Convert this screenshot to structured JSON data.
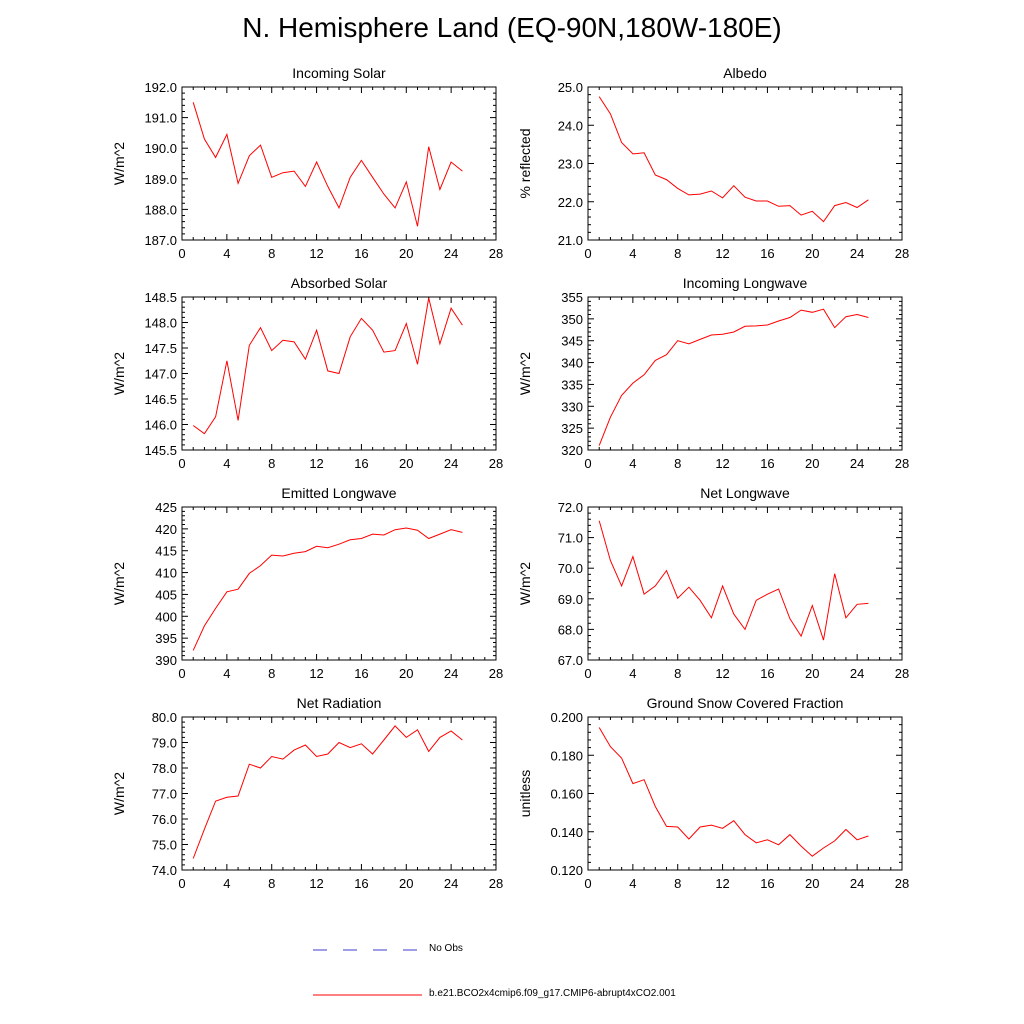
{
  "figure": {
    "title": "N. Hemisphere Land (EQ-90N,180W-180E)"
  },
  "legend": {
    "obs_label": "No Obs",
    "obs_color": "#3b3bd0",
    "model_label": "b.e21.BCO2x4cmip6.f09_g17.CMIP6-abrupt4xCO2.001",
    "model_color": "#ff0000"
  },
  "chart_data": [
    {
      "type": "line",
      "title": "Incoming Solar",
      "xlabel": "",
      "ylabel": "W/m^2",
      "xlim": [
        0,
        28
      ],
      "ylim": [
        187.0,
        192.0
      ],
      "xticks": [
        "0",
        "4",
        "8",
        "12",
        "16",
        "20",
        "24",
        "28"
      ],
      "yticks": [
        "187.0",
        "188.0",
        "189.0",
        "190.0",
        "191.0",
        "192.0"
      ],
      "x": [
        1,
        2,
        3,
        4,
        5,
        6,
        7,
        8,
        9,
        10,
        11,
        12,
        13,
        14,
        15,
        16,
        17,
        18,
        19,
        20,
        21,
        22,
        23,
        24,
        25
      ],
      "series": [
        {
          "name": "b.e21.BCO2x4cmip6.f09_g17.CMIP6-abrupt4xCO2.001",
          "values": [
            191.5,
            190.3,
            189.7,
            190.45,
            188.85,
            189.75,
            190.1,
            189.05,
            189.2,
            189.25,
            188.75,
            189.55,
            188.75,
            188.05,
            189.05,
            189.6,
            189.05,
            188.5,
            188.05,
            188.9,
            187.45,
            190.05,
            188.65,
            189.55,
            189.25
          ]
        }
      ]
    },
    {
      "type": "line",
      "title": "Albedo",
      "xlabel": "",
      "ylabel": "% reflected",
      "xlim": [
        0,
        28
      ],
      "ylim": [
        21.0,
        25.0
      ],
      "xticks": [
        "0",
        "4",
        "8",
        "12",
        "16",
        "20",
        "24",
        "28"
      ],
      "yticks": [
        "21.0",
        "22.0",
        "23.0",
        "24.0",
        "25.0"
      ],
      "x": [
        1,
        2,
        3,
        4,
        5,
        6,
        7,
        8,
        9,
        10,
        11,
        12,
        13,
        14,
        15,
        16,
        17,
        18,
        19,
        20,
        21,
        22,
        23,
        24,
        25
      ],
      "series": [
        {
          "name": "b.e21.BCO2x4cmip6.f09_g17.CMIP6-abrupt4xCO2.001",
          "values": [
            24.75,
            24.3,
            23.55,
            23.25,
            23.28,
            22.7,
            22.58,
            22.35,
            22.18,
            22.2,
            22.28,
            22.1,
            22.42,
            22.12,
            22.02,
            22.02,
            21.88,
            21.9,
            21.65,
            21.75,
            21.48,
            21.9,
            21.98,
            21.85,
            22.05
          ]
        }
      ]
    },
    {
      "type": "line",
      "title": "Absorbed Solar",
      "xlabel": "",
      "ylabel": "W/m^2",
      "xlim": [
        0,
        28
      ],
      "ylim": [
        145.5,
        148.5
      ],
      "xticks": [
        "0",
        "4",
        "8",
        "12",
        "16",
        "20",
        "24",
        "28"
      ],
      "yticks": [
        "145.5",
        "146.0",
        "146.5",
        "147.0",
        "147.5",
        "148.0",
        "148.5"
      ],
      "x": [
        1,
        2,
        3,
        4,
        5,
        6,
        7,
        8,
        9,
        10,
        11,
        12,
        13,
        14,
        15,
        16,
        17,
        18,
        19,
        20,
        21,
        22,
        23,
        24,
        25
      ],
      "series": [
        {
          "name": "b.e21.BCO2x4cmip6.f09_g17.CMIP6-abrupt4xCO2.001",
          "values": [
            145.98,
            145.82,
            146.15,
            147.25,
            146.08,
            147.55,
            147.9,
            147.45,
            147.65,
            147.62,
            147.28,
            147.85,
            147.05,
            147.0,
            147.72,
            148.08,
            147.85,
            147.42,
            147.45,
            147.98,
            147.18,
            148.48,
            147.58,
            148.28,
            147.95
          ]
        }
      ]
    },
    {
      "type": "line",
      "title": "Incoming Longwave",
      "xlabel": "",
      "ylabel": "W/m^2",
      "xlim": [
        0,
        28
      ],
      "ylim": [
        320,
        355
      ],
      "xticks": [
        "0",
        "4",
        "8",
        "12",
        "16",
        "20",
        "24",
        "28"
      ],
      "yticks": [
        "320",
        "325",
        "330",
        "335",
        "340",
        "345",
        "350",
        "355"
      ],
      "x": [
        1,
        2,
        3,
        4,
        5,
        6,
        7,
        8,
        9,
        10,
        11,
        12,
        13,
        14,
        15,
        16,
        17,
        18,
        19,
        20,
        21,
        22,
        23,
        24,
        25
      ],
      "series": [
        {
          "name": "b.e21.BCO2x4cmip6.f09_g17.CMIP6-abrupt4xCO2.001",
          "values": [
            321.0,
            327.5,
            332.5,
            335.3,
            337.2,
            340.5,
            341.8,
            345.0,
            344.3,
            345.3,
            346.3,
            346.5,
            347.0,
            348.3,
            348.4,
            348.6,
            349.5,
            350.3,
            352.0,
            351.5,
            352.2,
            348.0,
            350.5,
            351.0,
            350.3
          ]
        }
      ]
    },
    {
      "type": "line",
      "title": "Emitted Longwave",
      "xlabel": "",
      "ylabel": "W/m^2",
      "xlim": [
        0,
        28
      ],
      "ylim": [
        390,
        425
      ],
      "xticks": [
        "0",
        "4",
        "8",
        "12",
        "16",
        "20",
        "24",
        "28"
      ],
      "yticks": [
        "390",
        "395",
        "400",
        "405",
        "410",
        "415",
        "420",
        "425"
      ],
      "x": [
        1,
        2,
        3,
        4,
        5,
        6,
        7,
        8,
        9,
        10,
        11,
        12,
        13,
        14,
        15,
        16,
        17,
        18,
        19,
        20,
        21,
        22,
        23,
        24,
        25
      ],
      "series": [
        {
          "name": "b.e21.BCO2x4cmip6.f09_g17.CMIP6-abrupt4xCO2.001",
          "values": [
            392.2,
            397.8,
            401.8,
            405.6,
            406.2,
            409.8,
            411.6,
            414.0,
            413.8,
            414.4,
            414.8,
            416.0,
            415.7,
            416.5,
            417.5,
            417.8,
            418.8,
            418.6,
            419.8,
            420.2,
            419.7,
            417.8,
            418.8,
            419.8,
            419.2
          ]
        }
      ]
    },
    {
      "type": "line",
      "title": "Net Longwave",
      "xlabel": "",
      "ylabel": "W/m^2",
      "xlim": [
        0,
        28
      ],
      "ylim": [
        67.0,
        72.0
      ],
      "xticks": [
        "0",
        "4",
        "8",
        "12",
        "16",
        "20",
        "24",
        "28"
      ],
      "yticks": [
        "67.0",
        "68.0",
        "69.0",
        "70.0",
        "71.0",
        "72.0"
      ],
      "x": [
        1,
        2,
        3,
        4,
        5,
        6,
        7,
        8,
        9,
        10,
        11,
        12,
        13,
        14,
        15,
        16,
        17,
        18,
        19,
        20,
        21,
        22,
        23,
        24,
        25
      ],
      "series": [
        {
          "name": "b.e21.BCO2x4cmip6.f09_g17.CMIP6-abrupt4xCO2.001",
          "values": [
            71.55,
            70.25,
            69.42,
            70.38,
            69.15,
            69.42,
            69.92,
            69.02,
            69.38,
            68.95,
            68.38,
            69.42,
            68.5,
            68.0,
            68.95,
            69.15,
            69.32,
            68.35,
            67.78,
            68.78,
            67.65,
            69.82,
            68.38,
            68.82,
            68.85
          ]
        }
      ]
    },
    {
      "type": "line",
      "title": "Net Radiation",
      "xlabel": "",
      "ylabel": "W/m^2",
      "xlim": [
        0,
        28
      ],
      "ylim": [
        74.0,
        80.0
      ],
      "xticks": [
        "0",
        "4",
        "8",
        "12",
        "16",
        "20",
        "24",
        "28"
      ],
      "yticks": [
        "74.0",
        "75.0",
        "76.0",
        "77.0",
        "78.0",
        "79.0",
        "80.0"
      ],
      "x": [
        1,
        2,
        3,
        4,
        5,
        6,
        7,
        8,
        9,
        10,
        11,
        12,
        13,
        14,
        15,
        16,
        17,
        18,
        19,
        20,
        21,
        22,
        23,
        24,
        25
      ],
      "series": [
        {
          "name": "b.e21.BCO2x4cmip6.f09_g17.CMIP6-abrupt4xCO2.001",
          "values": [
            74.45,
            75.6,
            76.7,
            76.85,
            76.9,
            78.15,
            78.0,
            78.45,
            78.35,
            78.7,
            78.9,
            78.45,
            78.55,
            79.0,
            78.8,
            78.95,
            78.55,
            79.1,
            79.65,
            79.2,
            79.5,
            78.65,
            79.2,
            79.45,
            79.1
          ]
        }
      ]
    },
    {
      "type": "line",
      "title": "Ground Snow Covered Fraction",
      "xlabel": "",
      "ylabel": "unitless",
      "xlim": [
        0,
        28
      ],
      "ylim": [
        0.12,
        0.2
      ],
      "xticks": [
        "0",
        "4",
        "8",
        "12",
        "16",
        "20",
        "24",
        "28"
      ],
      "yticks": [
        "0.120",
        "0.140",
        "0.160",
        "0.180",
        "0.200"
      ],
      "x": [
        1,
        2,
        3,
        4,
        5,
        6,
        7,
        8,
        9,
        10,
        11,
        12,
        13,
        14,
        15,
        16,
        17,
        18,
        19,
        20,
        21,
        22,
        23,
        24,
        25
      ],
      "series": [
        {
          "name": "b.e21.BCO2x4cmip6.f09_g17.CMIP6-abrupt4xCO2.001",
          "values": [
            0.1945,
            0.1845,
            0.1785,
            0.1652,
            0.1672,
            0.1532,
            0.1428,
            0.1425,
            0.1362,
            0.1425,
            0.1435,
            0.1418,
            0.1458,
            0.1385,
            0.1342,
            0.1358,
            0.1332,
            0.1385,
            0.1325,
            0.1272,
            0.1315,
            0.1352,
            0.1412,
            0.1358,
            0.1378
          ]
        }
      ]
    }
  ]
}
